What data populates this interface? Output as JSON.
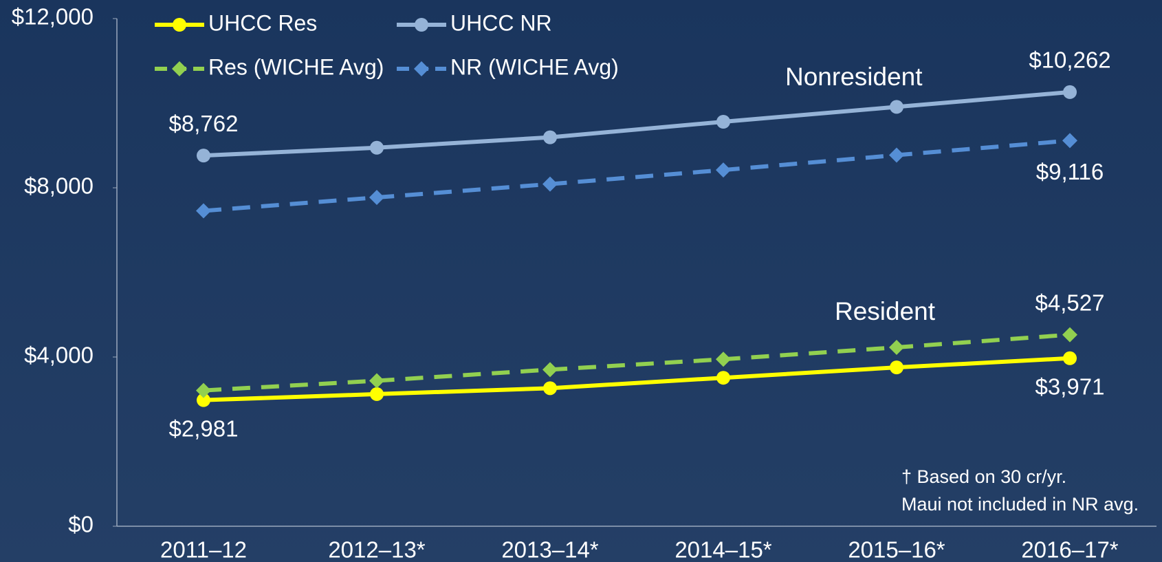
{
  "chart_data": {
    "type": "line",
    "categories": [
      "2011–12",
      "2012–13*",
      "2013–14*",
      "2014–15*",
      "2015–16*",
      "2016–17*"
    ],
    "series": [
      {
        "name": "UHCC Res",
        "color": "#ffff00",
        "marker": "circle",
        "dash": false,
        "values": [
          2981,
          3123,
          3263,
          3509,
          3754,
          3971
        ],
        "value_labels": [
          "$2,981",
          null,
          null,
          null,
          null,
          "$3,971"
        ]
      },
      {
        "name": "UHCC NR",
        "color": "#95b3d7",
        "marker": "circle",
        "dash": false,
        "values": [
          8762,
          8947,
          9193,
          9561,
          9912,
          10262
        ],
        "value_labels": [
          "$8,762",
          null,
          null,
          null,
          null,
          "$10,262"
        ]
      },
      {
        "name": "Res (WICHE Avg)",
        "color": "#92d050",
        "marker": "diamond",
        "dash": true,
        "values": [
          3210,
          3439,
          3702,
          3947,
          4228,
          4527
        ],
        "value_labels": [
          null,
          null,
          null,
          null,
          null,
          "$4,527"
        ]
      },
      {
        "name": "NR (WICHE Avg)",
        "color": "#558ed5",
        "marker": "diamond",
        "dash": true,
        "values": [
          7456,
          7772,
          8088,
          8421,
          8772,
          9116
        ],
        "value_labels": [
          null,
          null,
          null,
          null,
          null,
          "$9,116"
        ]
      }
    ],
    "ylim": [
      0,
      12000
    ],
    "yticks": [
      {
        "value": 0,
        "label": "$0"
      },
      {
        "value": 4000,
        "label": "$4,000"
      },
      {
        "value": 8000,
        "label": "$8,000"
      },
      {
        "value": 12000,
        "label": "$12,000"
      }
    ],
    "annotations": [
      "Nonresident",
      "Resident"
    ],
    "footnote": [
      "† Based on 30 cr/yr.",
      "Maui not included in NR avg."
    ]
  }
}
